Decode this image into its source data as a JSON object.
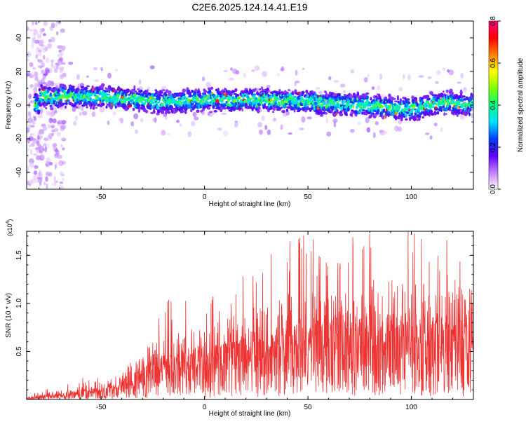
{
  "title": "C2E6.2025.124.14.41.E19",
  "colorbar": {
    "label": "Normalized spectral amplitude",
    "ticks": [
      "0.0",
      "0.2",
      "0.4",
      "0.6",
      "0.8"
    ],
    "range": [
      0,
      0.8
    ],
    "colors": [
      "#ffffff",
      "#c080ff",
      "#6000ff",
      "#0040ff",
      "#00e0ff",
      "#00ff80",
      "#80ff00",
      "#ffff00",
      "#ff8000",
      "#ff0000",
      "#ff0080"
    ]
  },
  "accent_color": "#ee3333",
  "chart_data": [
    {
      "type": "heatmap",
      "xlabel": "Height of straight line (km)",
      "ylabel": "Frequency (Hz)",
      "xlim": [
        -86,
        130
      ],
      "ylim": [
        -50,
        50
      ],
      "x_ticks": [
        "-50",
        "0",
        "50",
        "100"
      ],
      "y_ticks": [
        "-40",
        "-20",
        "0",
        "20",
        "40"
      ],
      "band_center_hz": [
        {
          "x": -80,
          "y": 5
        },
        {
          "x": -60,
          "y": 5
        },
        {
          "x": -40,
          "y": 4
        },
        {
          "x": -20,
          "y": 2
        },
        {
          "x": 0,
          "y": 3
        },
        {
          "x": 20,
          "y": 3
        },
        {
          "x": 40,
          "y": 3
        },
        {
          "x": 60,
          "y": 1
        },
        {
          "x": 80,
          "y": 0
        },
        {
          "x": 100,
          "y": -3
        },
        {
          "x": 115,
          "y": 2
        },
        {
          "x": 130,
          "y": 0
        }
      ],
      "band_halfwidth_hz": 6
    },
    {
      "type": "line",
      "xlabel": "Height of straight line (km)",
      "ylabel": "SNR (10 * v/v)",
      "y_multiplier": "(x10",
      "y_multiplier_exp": "4",
      "y_multiplier_close": ")",
      "xlim": [
        -86,
        130
      ],
      "ylim": [
        0,
        1.75
      ],
      "x_ticks": [
        "-50",
        "0",
        "50",
        "100"
      ],
      "y_ticks": [
        "0.5",
        "1.0",
        "1.5"
      ],
      "envelope": [
        {
          "x": -86,
          "mean": 0.01,
          "peak": 0.03
        },
        {
          "x": -65,
          "mean": 0.06,
          "peak": 0.22
        },
        {
          "x": -45,
          "mean": 0.1,
          "peak": 0.26
        },
        {
          "x": -35,
          "mean": 0.2,
          "peak": 0.45
        },
        {
          "x": -25,
          "mean": 0.3,
          "peak": 0.75
        },
        {
          "x": -20,
          "mean": 0.33,
          "peak": 1.12
        },
        {
          "x": -5,
          "mean": 0.38,
          "peak": 1.1
        },
        {
          "x": 10,
          "mean": 0.42,
          "peak": 1.2
        },
        {
          "x": 25,
          "mean": 0.5,
          "peak": 1.4
        },
        {
          "x": 40,
          "mean": 0.56,
          "peak": 1.75
        },
        {
          "x": 55,
          "mean": 0.6,
          "peak": 1.7
        },
        {
          "x": 70,
          "mean": 0.62,
          "peak": 1.72
        },
        {
          "x": 85,
          "mean": 0.63,
          "peak": 1.75
        },
        {
          "x": 100,
          "mean": 0.62,
          "peak": 1.75
        },
        {
          "x": 115,
          "mean": 0.6,
          "peak": 1.7
        },
        {
          "x": 130,
          "mean": 0.6,
          "peak": 1.5
        }
      ]
    }
  ]
}
